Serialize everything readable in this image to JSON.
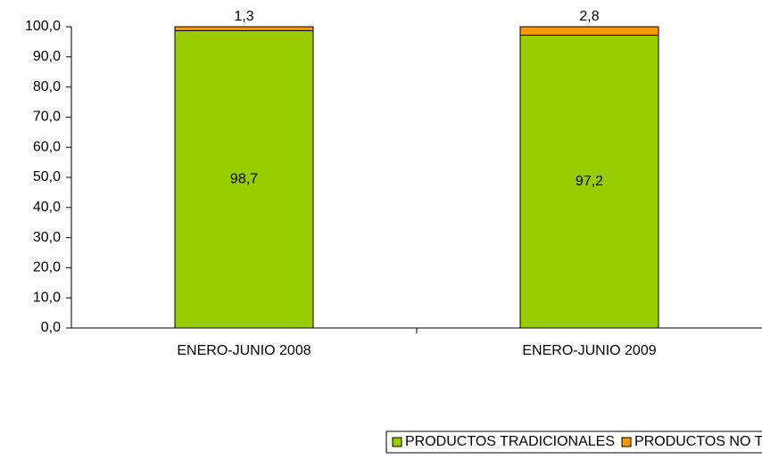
{
  "chart_data": {
    "type": "stacked_bar",
    "categories": [
      "ENERO-JUNIO 2008",
      "ENERO-JUNIO 2009"
    ],
    "series": [
      {
        "name": "PRODUCTOS TRADICIONALES",
        "color": "#99cc00",
        "values": [
          98.7,
          97.2
        ],
        "value_labels": [
          "98,7",
          "97,2"
        ]
      },
      {
        "name": "PRODUCTOS NO TRADICIONALES",
        "color": "#ff9900",
        "values": [
          1.3,
          2.8
        ],
        "value_labels": [
          "1,3",
          "2,8"
        ]
      }
    ],
    "ylim": [
      0,
      100
    ],
    "yticks": [
      {
        "value": 0,
        "label": "0,0"
      },
      {
        "value": 10,
        "label": "10,0"
      },
      {
        "value": 20,
        "label": "20,0"
      },
      {
        "value": 30,
        "label": "30,0"
      },
      {
        "value": 40,
        "label": "40,0"
      },
      {
        "value": 50,
        "label": "50,0"
      },
      {
        "value": 60,
        "label": "60,0"
      },
      {
        "value": 70,
        "label": "70,0"
      },
      {
        "value": 80,
        "label": "80,0"
      },
      {
        "value": 90,
        "label": "90,0"
      },
      {
        "value": 100,
        "label": "100,0"
      }
    ],
    "legend": "bottom"
  }
}
